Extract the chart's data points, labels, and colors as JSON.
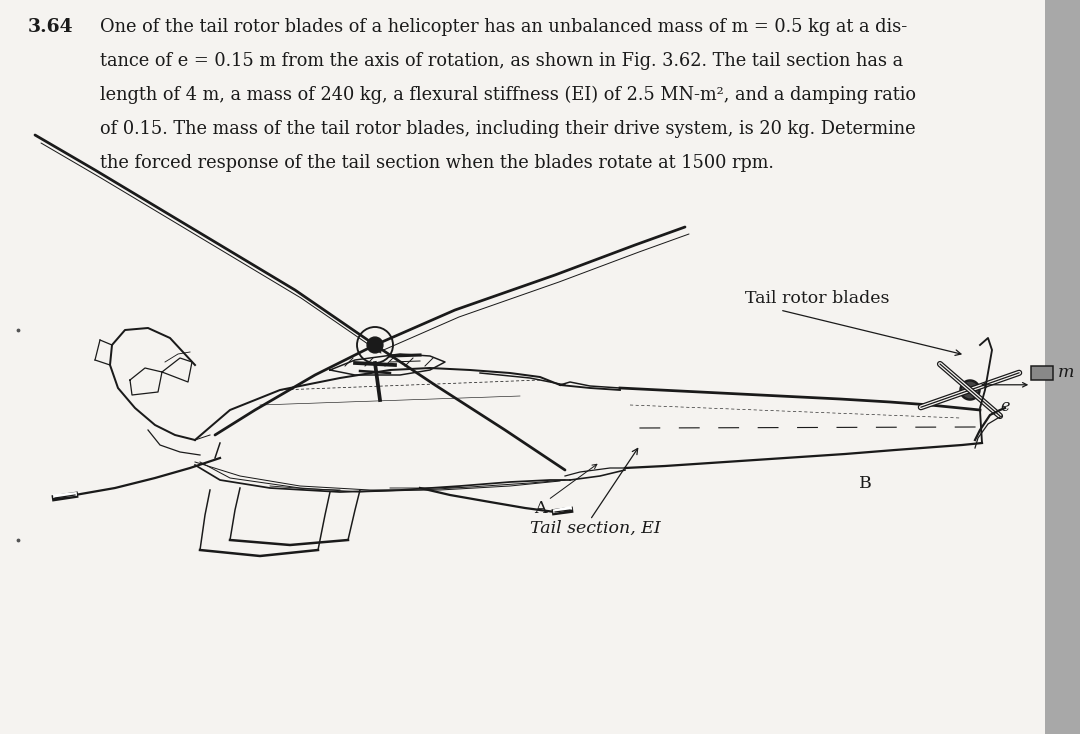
{
  "background_color": "#f5f3f0",
  "text_color": "#111111",
  "problem_number": "3.64",
  "line1": "One of the tail rotor blades of a helicopter has an unbalanced mass of m = 0.5 kg at a dis-",
  "line2": "tance of e = 0.15 m from the axis of rotation, as shown in Fig. 3.62. The tail section has a",
  "line3": "length of 4 m, a mass of 240 kg, a flexural stiffness (EI) of 2.5 MN-m², and a damping ratio",
  "line4": "of 0.15. The mass of the tail rotor blades, including their drive system, is 20 kg. Determine",
  "line5": "the forced response of the tail section when the blades rotate at 1500 rpm.",
  "label_tail_rotor": "Tail rotor blades",
  "label_tail_section": "Tail section, EI",
  "label_m": "m",
  "label_e": "e",
  "label_A": "A",
  "label_B": "B",
  "font_size_body": 12.8,
  "font_size_number": 13.5,
  "font_size_labels": 11.5,
  "right_bar_color": "#a8a8a8",
  "line_color": "#1a1a1a"
}
